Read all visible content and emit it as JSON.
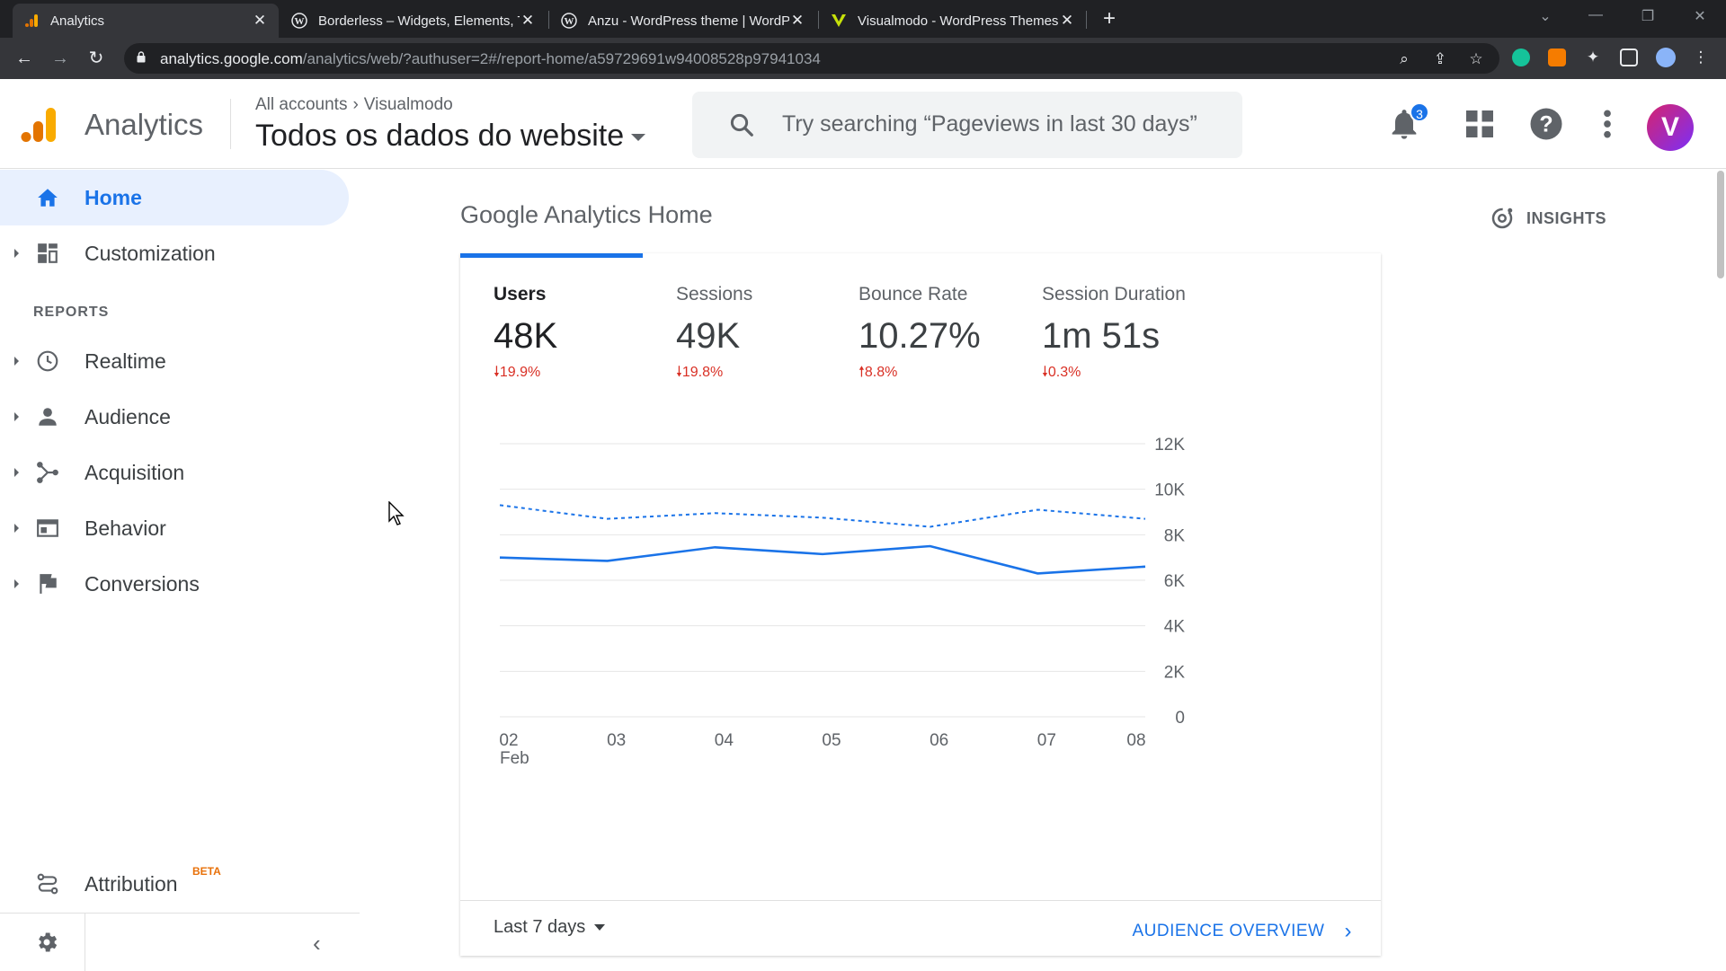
{
  "browser": {
    "tabs": [
      {
        "title": "Analytics",
        "icon": "analytics-icon",
        "active": true
      },
      {
        "title": "Borderless – Widgets, Elements, T",
        "icon": "wordpress-icon",
        "active": false
      },
      {
        "title": "Anzu - WordPress theme | WordP",
        "icon": "wordpress-icon",
        "active": false
      },
      {
        "title": "Visualmodo - WordPress Themes",
        "icon": "visualmodo-icon",
        "active": false
      }
    ],
    "url_host": "analytics.google.com",
    "url_path": "/analytics/web/?authuser=2#/report-home/a59729691w94008528p97941034"
  },
  "header": {
    "product": "Analytics",
    "crumb_account": "All accounts",
    "crumb_property": "Visualmodo",
    "view": "Todos os dados do website",
    "search_placeholder": "Try searching “Pageviews in last 30 days”",
    "notification_count": "3",
    "avatar_letter": "V"
  },
  "sidebar": {
    "home": "Home",
    "customization": "Customization",
    "reports_header": "REPORTS",
    "realtime": "Realtime",
    "audience": "Audience",
    "acquisition": "Acquisition",
    "behavior": "Behavior",
    "conversions": "Conversions",
    "attribution": "Attribution",
    "attribution_badge": "BETA"
  },
  "main": {
    "title": "Google Analytics Home",
    "insights": "INSIGHTS",
    "metrics": [
      {
        "name": "Users",
        "value": "48K",
        "change": "19.9%",
        "direction": "down"
      },
      {
        "name": "Sessions",
        "value": "49K",
        "change": "19.8%",
        "direction": "down"
      },
      {
        "name": "Bounce Rate",
        "value": "10.27%",
        "change": "8.8%",
        "direction": "up"
      },
      {
        "name": "Session Duration",
        "value": "1m 51s",
        "change": "0.3%",
        "direction": "down"
      }
    ],
    "date_range": "Last 7 days",
    "overview_link": "AUDIENCE OVERVIEW"
  },
  "colors": {
    "accent": "#1a73e8",
    "negative": "#d93025"
  },
  "chart_data": {
    "type": "line",
    "categories": [
      "02",
      "03",
      "04",
      "05",
      "06",
      "07",
      "08"
    ],
    "category_sublabel": "Feb",
    "y_ticks": [
      "0",
      "2K",
      "4K",
      "6K",
      "8K",
      "10K",
      "12K"
    ],
    "ylim": [
      0,
      12000
    ],
    "series": [
      {
        "values": [
          7000,
          6850,
          7450,
          7150,
          7500,
          6300,
          6600
        ],
        "style": "solid",
        "color": "#1a73e8"
      },
      {
        "values": [
          9300,
          8700,
          8950,
          8750,
          8350,
          9100,
          8700
        ],
        "style": "dashed",
        "color": "#1a73e8"
      }
    ]
  }
}
